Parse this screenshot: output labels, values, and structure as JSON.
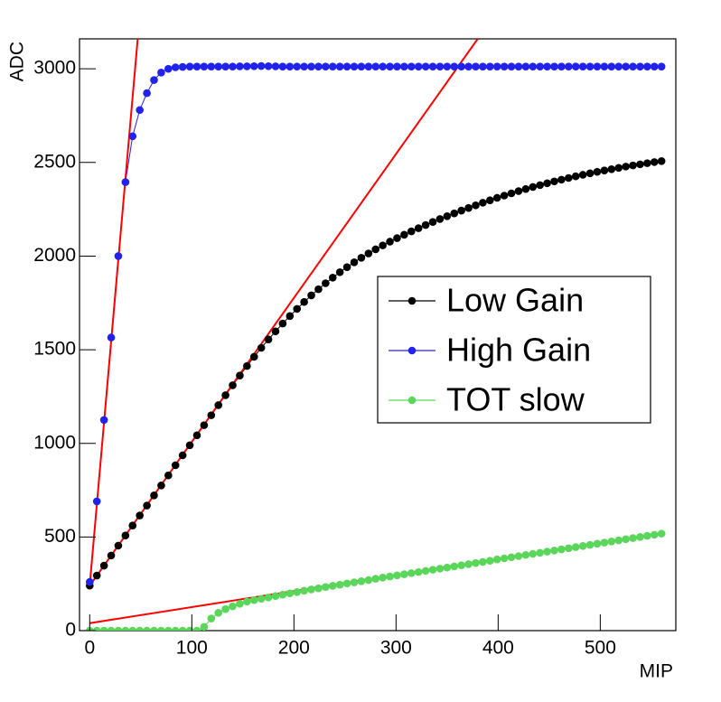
{
  "chart_data": {
    "type": "scatter",
    "x_label": "MIP",
    "y_label": "ADC",
    "xlim": [
      -10,
      574
    ],
    "ylim": [
      0,
      3160
    ],
    "xticks": [
      0,
      100,
      200,
      300,
      400,
      500
    ],
    "yticks": [
      0,
      500,
      1000,
      1500,
      2000,
      2500,
      3000
    ],
    "legend_position": "center-right",
    "x": [
      0,
      7,
      14,
      21,
      28,
      35,
      42,
      49,
      56,
      63,
      70,
      77,
      84,
      91,
      98,
      105,
      112,
      119,
      126,
      133,
      140,
      147,
      154,
      161,
      168,
      175,
      182,
      189,
      196,
      203,
      210,
      217,
      224,
      231,
      238,
      245,
      252,
      259,
      266,
      273,
      280,
      287,
      294,
      301,
      308,
      315,
      322,
      329,
      336,
      343,
      350,
      357,
      364,
      371,
      378,
      385,
      392,
      399,
      406,
      413,
      420,
      427,
      434,
      441,
      448,
      455,
      462,
      469,
      476,
      483,
      490,
      497,
      504,
      511,
      518,
      525,
      532,
      539,
      546,
      553,
      560
    ],
    "series": [
      {
        "name": "Low Gain",
        "color": "#000000",
        "values": [
          240,
          294,
          347,
          401,
          454,
          508,
          561,
          615,
          668,
          722,
          775,
          829,
          883,
          936,
          990,
          1043,
          1097,
          1150,
          1204,
          1257,
          1310,
          1362,
          1413,
          1462,
          1510,
          1555,
          1598,
          1640,
          1680,
          1718,
          1755,
          1790,
          1823,
          1855,
          1885,
          1914,
          1941,
          1967,
          1991,
          2014,
          2036,
          2057,
          2077,
          2096,
          2114,
          2132,
          2149,
          2166,
          2182,
          2198,
          2213,
          2228,
          2243,
          2257,
          2271,
          2285,
          2298,
          2311,
          2323,
          2335,
          2347,
          2358,
          2369,
          2379,
          2389,
          2399,
          2408,
          2417,
          2426,
          2434,
          2442,
          2450,
          2457,
          2464,
          2471,
          2478,
          2484,
          2490,
          2496,
          2502,
          2507
        ]
      },
      {
        "name": "High Gain",
        "color": "#2222ee",
        "values": [
          260,
          690,
          1125,
          1565,
          2000,
          2395,
          2640,
          2780,
          2870,
          2940,
          2980,
          3000,
          3008,
          3010,
          3012,
          3012,
          3012,
          3012,
          3012,
          3012,
          3012,
          3013,
          3013,
          3014,
          3015,
          3014,
          3013,
          3012,
          3012,
          3012,
          3012,
          3012,
          3012,
          3012,
          3012,
          3012,
          3012,
          3012,
          3012,
          3012,
          3012,
          3012,
          3012,
          3012,
          3012,
          3012,
          3012,
          3012,
          3012,
          3012,
          3012,
          3012,
          3012,
          3012,
          3012,
          3012,
          3012,
          3012,
          3012,
          3012,
          3012,
          3012,
          3012,
          3012,
          3012,
          3012,
          3012,
          3012,
          3012,
          3012,
          3012,
          3012,
          3012,
          3012,
          3012,
          3012,
          3012,
          3012,
          3012,
          3012,
          3012
        ]
      },
      {
        "name": "TOT slow",
        "color": "#5ad65a",
        "values": [
          0,
          0,
          0,
          0,
          0,
          0,
          0,
          0,
          0,
          0,
          0,
          0,
          0,
          0,
          0,
          0,
          20,
          65,
          95,
          115,
          130,
          143,
          155,
          163,
          170,
          177,
          185,
          192,
          199,
          206,
          213,
          220,
          226,
          233,
          239,
          245,
          252,
          258,
          264,
          270,
          277,
          283,
          289,
          295,
          301,
          307,
          313,
          319,
          325,
          331,
          337,
          343,
          349,
          355,
          361,
          367,
          373,
          380,
          386,
          392,
          398,
          404,
          410,
          416,
          422,
          428,
          434,
          440,
          446,
          452,
          458,
          464,
          470,
          476,
          482,
          488,
          494,
          500,
          506,
          512,
          518
        ]
      }
    ],
    "fit_lines": [
      {
        "color": "#ff0000",
        "x": [
          0,
          47
        ],
        "values": [
          240,
          3160
        ]
      },
      {
        "color": "#ff0000",
        "x": [
          0,
          380
        ],
        "values": [
          240,
          3160
        ]
      },
      {
        "color": "#ff0000",
        "x": [
          0,
          560
        ],
        "values": [
          40,
          520
        ]
      }
    ]
  }
}
